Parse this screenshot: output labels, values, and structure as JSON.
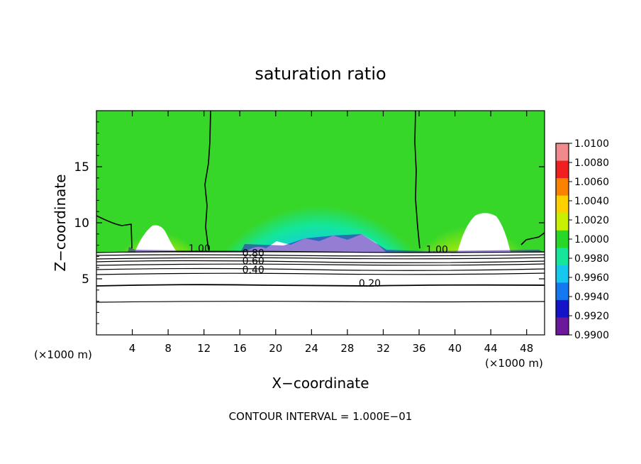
{
  "chart_data": {
    "type": "heatmap",
    "title": "saturation ratio",
    "xlabel": "X−coordinate",
    "ylabel": "Z−coordinate",
    "x_unit_left": "(×1000 m)",
    "x_unit_right": "(×1000 m)",
    "xlim": [
      0,
      50
    ],
    "ylim": [
      0,
      20
    ],
    "xticks": [
      "4",
      "8",
      "12",
      "16",
      "20",
      "24",
      "28",
      "32",
      "36",
      "40",
      "44",
      "48"
    ],
    "yticks": [
      "5",
      "10",
      "15"
    ],
    "colorbar": {
      "ticks": [
        "1.0100",
        "1.0080",
        "1.0060",
        "1.0040",
        "1.0020",
        "1.0000",
        "0.9980",
        "0.9960",
        "0.9940",
        "0.9920",
        "0.9900"
      ],
      "colors": [
        "#f08a8c",
        "#f02020",
        "#fa8200",
        "#ffd000",
        "#c8f000",
        "#28d828",
        "#14e69a",
        "#14c8ee",
        "#1478f0",
        "#1414c8",
        "#6c189a"
      ]
    },
    "contour_labels": [
      {
        "text": "1.00",
        "x": 11.5,
        "y": 7.4
      },
      {
        "text": "0.80",
        "x": 17.5,
        "y": 7.0
      },
      {
        "text": "0.60",
        "x": 17.5,
        "y": 6.3
      },
      {
        "text": "0.40",
        "x": 17.5,
        "y": 5.5
      },
      {
        "text": "0.20",
        "x": 30.5,
        "y": 4.3
      },
      {
        "text": "1.00",
        "x": 38.0,
        "y": 7.3
      }
    ],
    "note": "CONTOUR INTERVAL = 1.000E−01"
  }
}
